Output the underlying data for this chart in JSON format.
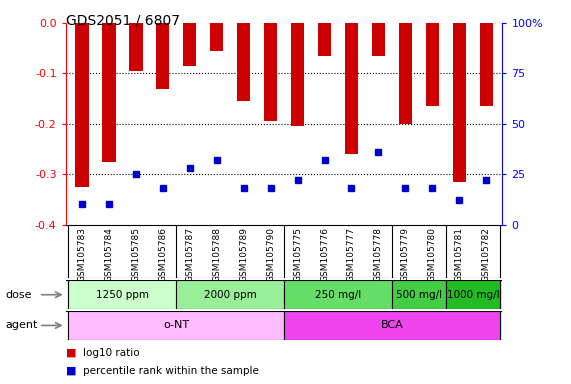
{
  "title": "GDS2051 / 6807",
  "samples": [
    "GSM105783",
    "GSM105784",
    "GSM105785",
    "GSM105786",
    "GSM105787",
    "GSM105788",
    "GSM105789",
    "GSM105790",
    "GSM105775",
    "GSM105776",
    "GSM105777",
    "GSM105778",
    "GSM105779",
    "GSM105780",
    "GSM105781",
    "GSM105782"
  ],
  "log10_ratio": [
    -0.325,
    -0.275,
    -0.095,
    -0.13,
    -0.085,
    -0.055,
    -0.155,
    -0.195,
    -0.205,
    -0.065,
    -0.26,
    -0.065,
    -0.2,
    -0.165,
    -0.315,
    -0.165
  ],
  "percentile_rank": [
    10,
    10,
    25,
    18,
    28,
    32,
    18,
    18,
    22,
    32,
    18,
    36,
    18,
    18,
    12,
    22
  ],
  "bar_color": "#cc0000",
  "marker_color": "#0000cc",
  "ylim": [
    -0.4,
    0.0
  ],
  "yticks": [
    0.0,
    -0.1,
    -0.2,
    -0.3,
    -0.4
  ],
  "right_yticks": [
    100,
    75,
    50,
    25,
    0
  ],
  "dose_groups": [
    {
      "label": "1250 ppm",
      "start": 0,
      "end": 4,
      "color": "#ccffcc"
    },
    {
      "label": "2000 ppm",
      "start": 4,
      "end": 8,
      "color": "#99ee99"
    },
    {
      "label": "250 mg/l",
      "start": 8,
      "end": 12,
      "color": "#66dd66"
    },
    {
      "label": "500 mg/l",
      "start": 12,
      "end": 14,
      "color": "#44cc44"
    },
    {
      "label": "1000 mg/l",
      "start": 14,
      "end": 16,
      "color": "#22bb22"
    }
  ],
  "agent_groups": [
    {
      "label": "o-NT",
      "start": 0,
      "end": 8,
      "color": "#ffbbff"
    },
    {
      "label": "BCA",
      "start": 8,
      "end": 16,
      "color": "#ee44ee"
    }
  ],
  "dose_row_label": "dose",
  "agent_row_label": "agent",
  "legend_red": "log10 ratio",
  "legend_blue": "percentile rank within the sample",
  "background_color": "#ffffff",
  "plot_bg_color": "#ffffff",
  "bar_width": 0.5,
  "right_axis_color": "#0000ff"
}
